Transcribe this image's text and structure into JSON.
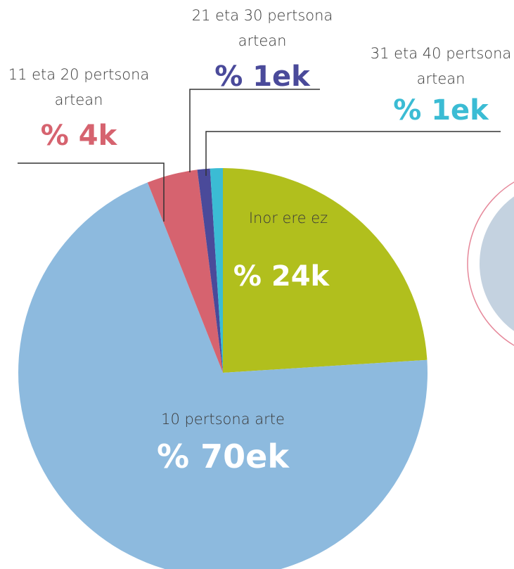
{
  "chart_data": {
    "type": "pie",
    "categories": [
      "Inor ere ez",
      "10 pertsona arte",
      "11 eta 20 pertsona artean",
      "21 eta 30 pertsona artean",
      "31 eta 40 pertsona artean"
    ],
    "values": [
      24,
      70,
      4,
      1,
      1
    ],
    "value_labels": [
      "% 24k",
      "% 70ek",
      "% 4k",
      "% 1ek",
      "% 1ek"
    ],
    "colors": [
      "#b1bf1d",
      "#8dbade",
      "#d6636f",
      "#4a4a9a",
      "#3bbcd4"
    ]
  }
}
